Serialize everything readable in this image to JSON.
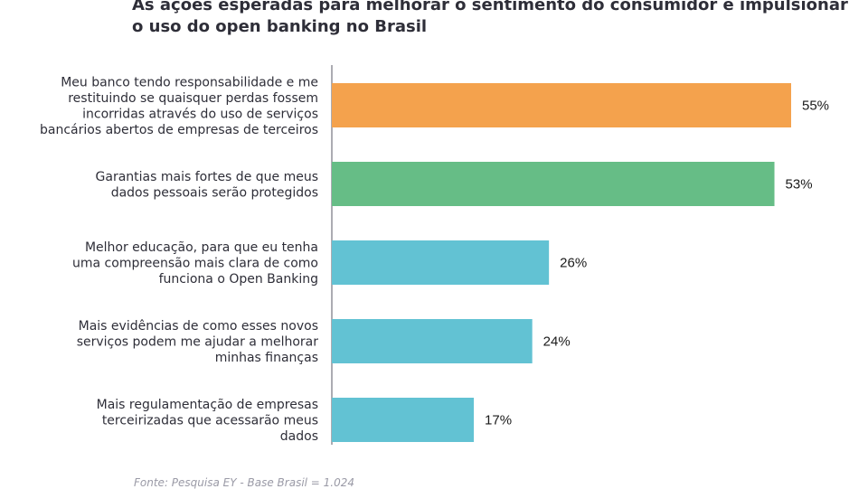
{
  "chart_data": {
    "type": "bar",
    "orientation": "horizontal",
    "title": "As ações esperadas para melhorar o sentimento do consumidor e impulsionar o uso do open banking no Brasil",
    "categories": [
      [
        "Meu banco tendo responsabilidade e me",
        "restituindo se quaisquer perdas fossem",
        "incorridas através do uso de serviços",
        "bancários abertos de empresas de terceiros"
      ],
      [
        "Garantias mais fortes de que meus",
        "dados pessoais serão protegidos"
      ],
      [
        "Melhor educação, para que eu tenha",
        "uma compreensão mais clara de como",
        "funciona o Open Banking"
      ],
      [
        "Mais evidências de como esses novos",
        "serviços podem me ajudar a melhorar",
        "minhas finanças"
      ],
      [
        "Mais regulamentação de empresas",
        "terceirizadas que acessarão meus",
        "dados"
      ]
    ],
    "values": [
      55,
      53,
      26,
      24,
      17
    ],
    "value_labels": [
      "55%",
      "53%",
      "26%",
      "24%",
      "17%"
    ],
    "bar_colors": [
      "#f4a24d",
      "#66bd86",
      "#62c2d3",
      "#62c2d3",
      "#62c2d3"
    ],
    "xlim": [
      0,
      100
    ],
    "grid": false,
    "legend": "none",
    "source": "Fonte: Pesquisa EY - Base Brasil = 1.024"
  }
}
